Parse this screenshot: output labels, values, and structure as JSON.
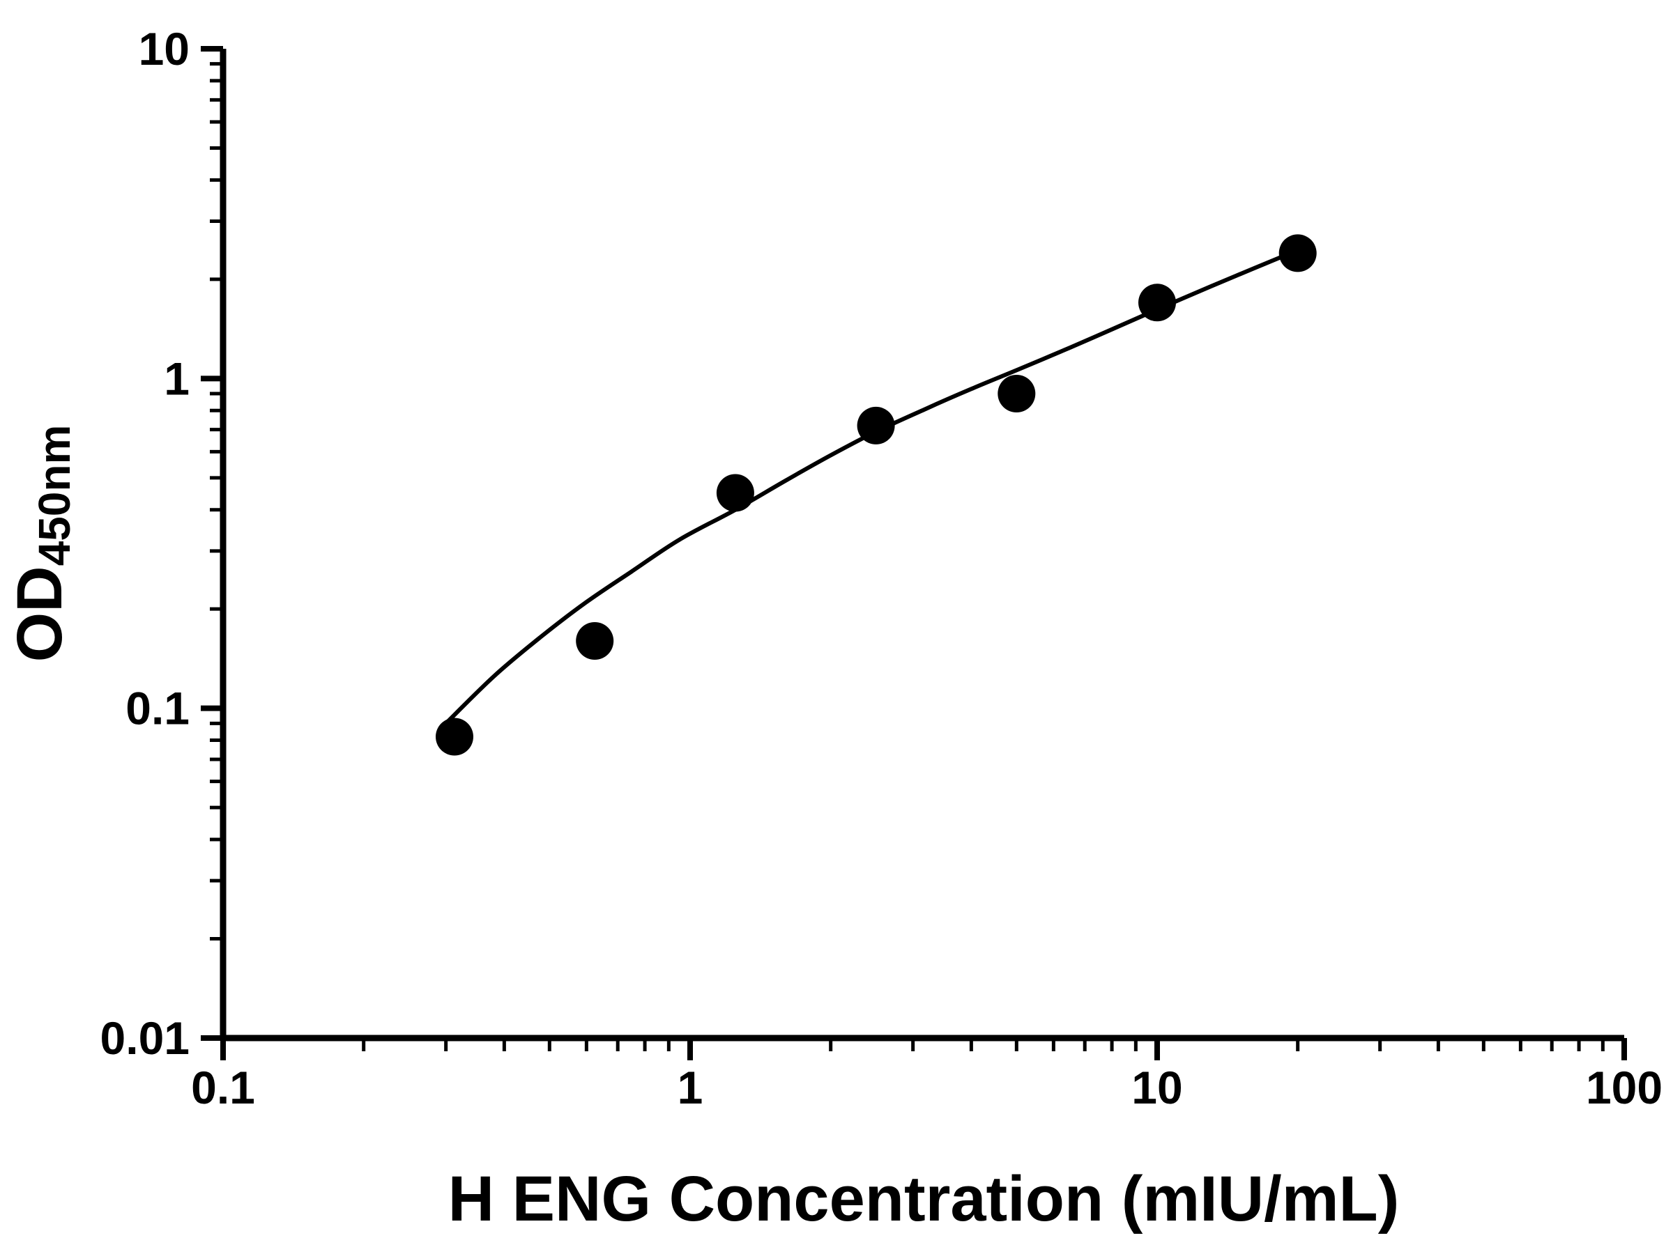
{
  "chart_data": {
    "type": "scatter",
    "title": "",
    "xlabel": "H ENG Concentration (mIU/mL)",
    "ylabel_main": "OD",
    "ylabel_sub": "450nm",
    "x_scale": "log",
    "y_scale": "log",
    "xlim": [
      0.1,
      100
    ],
    "ylim": [
      0.01,
      10
    ],
    "x_major_ticks": [
      0.1,
      1,
      10,
      100
    ],
    "x_tick_labels": [
      "0.1",
      "1",
      "10",
      "100"
    ],
    "y_major_ticks": [
      0.01,
      0.1,
      1,
      10
    ],
    "y_tick_labels": [
      "0.01",
      "0.1",
      "1",
      "10"
    ],
    "grid": false,
    "legend": "none",
    "series": [
      {
        "name": "standard-points",
        "type": "scatter",
        "marker": "circle",
        "color": "#000000",
        "x": [
          0.313,
          0.625,
          1.25,
          2.5,
          5,
          10,
          20
        ],
        "y": [
          0.082,
          0.16,
          0.45,
          0.72,
          0.9,
          1.7,
          2.4
        ]
      },
      {
        "name": "fitted-curve",
        "type": "line",
        "color": "#000000",
        "x": [
          0.3,
          0.38,
          0.48,
          0.6,
          0.75,
          0.95,
          1.25,
          1.6,
          2.0,
          2.5,
          3.2,
          4.0,
          5.0,
          6.5,
          8.0,
          10,
          13,
          16,
          20
        ],
        "y": [
          0.09,
          0.125,
          0.165,
          0.21,
          0.26,
          0.325,
          0.4,
          0.49,
          0.585,
          0.69,
          0.81,
          0.93,
          1.06,
          1.24,
          1.41,
          1.62,
          1.9,
          2.15,
          2.45
        ]
      }
    ]
  },
  "colors": {
    "axis": "#000000",
    "marker": "#000000",
    "curve": "#000000",
    "background": "#ffffff"
  }
}
